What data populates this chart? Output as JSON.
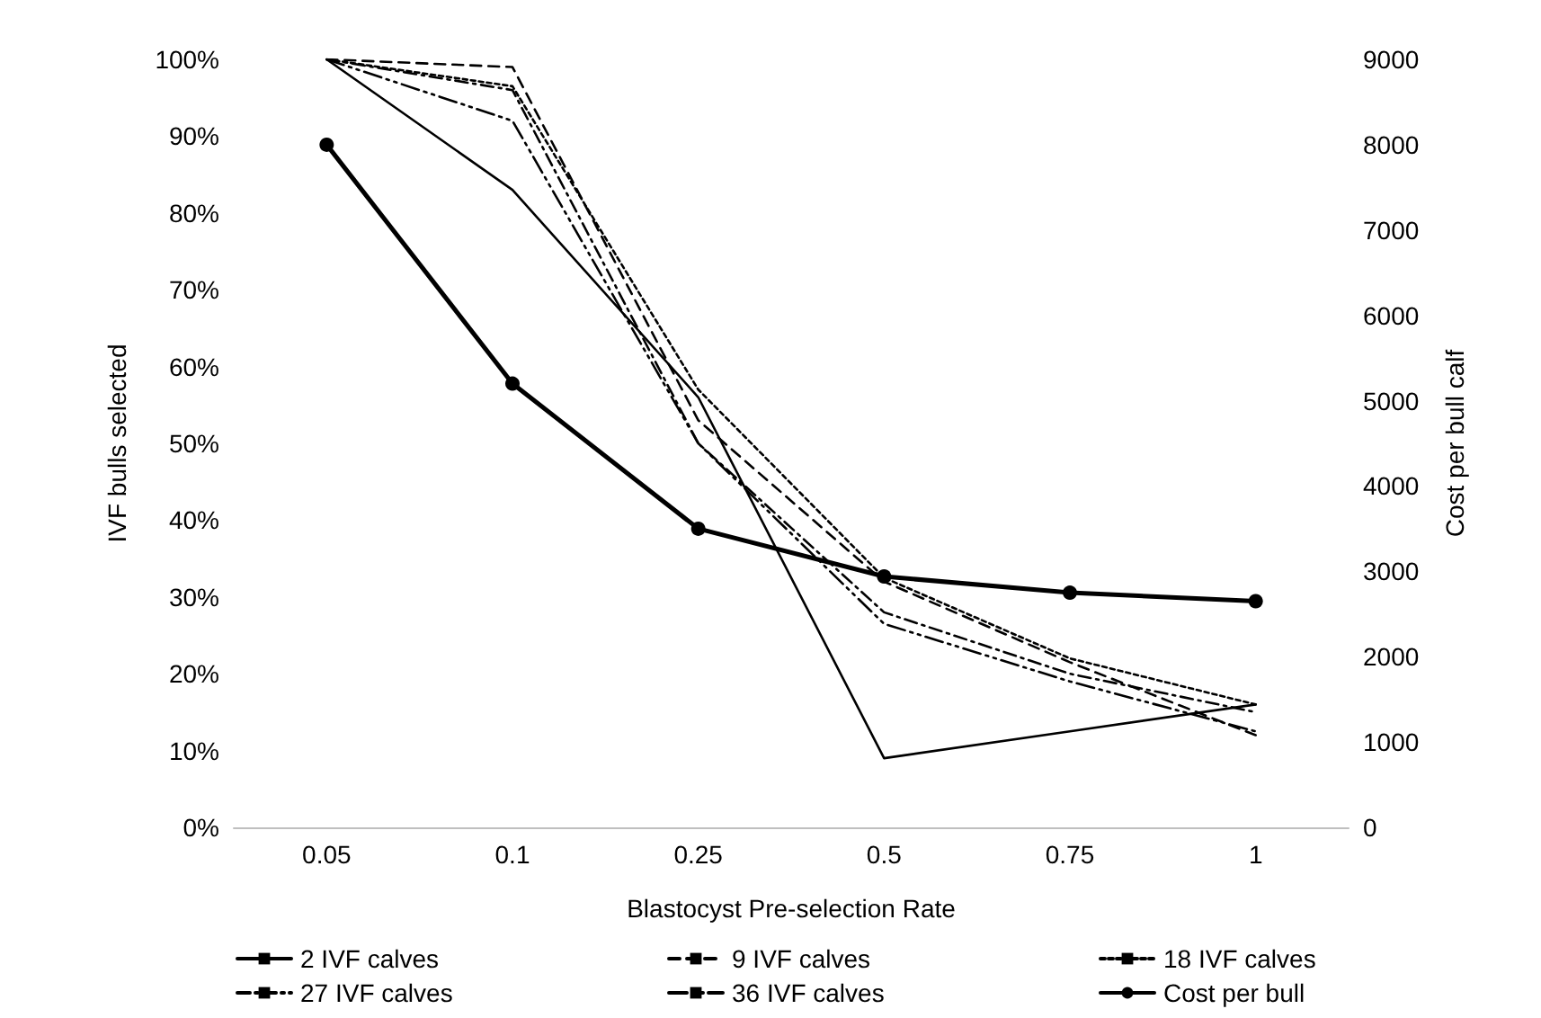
{
  "chart_data": {
    "type": "line",
    "xlabel": "Blastocyst Pre-selection Rate",
    "ylabel": "IVF bulls selected",
    "y2label": "Cost per bull calf",
    "categories": [
      "0.05",
      "0.1",
      "0.25",
      "0.5",
      "0.75",
      "1"
    ],
    "series": [
      {
        "name": "2 IVF calves",
        "color": "#000000",
        "line_style": "solid",
        "marker": "none",
        "values": [
          100,
          83,
          56,
          9,
          12.5,
          16
        ]
      },
      {
        "name": "9 IVF calves",
        "color": "#000000",
        "line_style": "dashed",
        "marker": "none",
        "values": [
          100,
          99,
          53,
          32,
          21.5,
          12
        ]
      },
      {
        "name": "18 IVF calves",
        "color": "#000000",
        "line_style": "dotted",
        "marker": "none",
        "values": [
          100,
          96.5,
          57,
          32.5,
          22,
          16
        ]
      },
      {
        "name": "27 IVF calves",
        "color": "#000000",
        "line_style": "dashdot",
        "marker": "none",
        "values": [
          100,
          96,
          50,
          28,
          20,
          15
        ]
      },
      {
        "name": "36 IVF calves",
        "color": "#000000",
        "line_style": "dashdotdot",
        "marker": "none",
        "values": [
          100,
          92,
          50,
          26.5,
          19,
          12.5
        ]
      },
      {
        "name": "Cost per bull",
        "color": "#000000",
        "line_style": "solid",
        "marker": "circle",
        "axis": "y2",
        "values": [
          8000,
          5200,
          3500,
          2940,
          2750,
          2650
        ]
      }
    ],
    "ylim": [
      0,
      100
    ],
    "yticks": [
      {
        "value": 0,
        "label": "0%"
      },
      {
        "value": 10,
        "label": "10%"
      },
      {
        "value": 20,
        "label": "20%"
      },
      {
        "value": 30,
        "label": "30%"
      },
      {
        "value": 40,
        "label": "40%"
      },
      {
        "value": 50,
        "label": "50%"
      },
      {
        "value": 60,
        "label": "60%"
      },
      {
        "value": 70,
        "label": "70%"
      },
      {
        "value": 80,
        "label": "80%"
      },
      {
        "value": 90,
        "label": "90%"
      },
      {
        "value": 100,
        "label": "100%"
      }
    ],
    "y2lim": [
      0,
      9000
    ],
    "y2ticks": [
      0,
      1000,
      2000,
      3000,
      4000,
      5000,
      6000,
      7000,
      8000,
      9000
    ],
    "grid": false,
    "legend": "bottom"
  }
}
